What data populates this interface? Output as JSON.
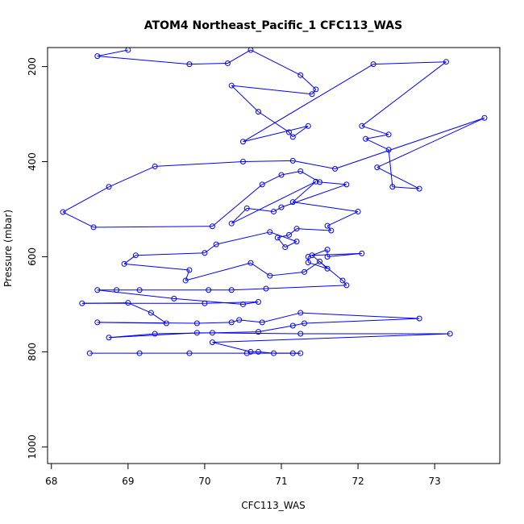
{
  "chart_data": {
    "type": "line",
    "title": "ATOM4 Northeast_Pacific_1 CFC113_WAS",
    "xlabel": "CFC113_WAS",
    "ylabel": "Pressure (mbar)",
    "xlim": [
      67.95,
      73.85
    ],
    "ylim": [
      1035,
      160
    ],
    "y_reversed": true,
    "xticks": [
      68,
      69,
      70,
      71,
      72,
      73
    ],
    "yticks": [
      200,
      400,
      600,
      800,
      1000
    ],
    "series_color": "#0000ff",
    "marker": "open-circle",
    "points": [
      [
        69.0,
        165
      ],
      [
        68.6,
        178
      ],
      [
        69.8,
        195
      ],
      [
        70.3,
        193
      ],
      [
        70.6,
        165
      ],
      [
        71.25,
        218
      ],
      [
        71.45,
        248
      ],
      [
        71.4,
        258
      ],
      [
        70.35,
        240
      ],
      [
        70.7,
        295
      ],
      [
        71.1,
        338
      ],
      [
        71.15,
        348
      ],
      [
        71.35,
        325
      ],
      [
        70.5,
        358
      ],
      [
        72.2,
        195
      ],
      [
        73.15,
        190
      ],
      [
        72.05,
        325
      ],
      [
        72.4,
        343
      ],
      [
        72.1,
        352
      ],
      [
        72.4,
        375
      ],
      [
        72.45,
        453
      ],
      [
        72.8,
        457
      ],
      [
        72.25,
        412
      ],
      [
        73.65,
        308
      ],
      [
        71.7,
        415
      ],
      [
        71.15,
        398
      ],
      [
        70.5,
        400
      ],
      [
        69.35,
        410
      ],
      [
        68.75,
        453
      ],
      [
        68.15,
        506
      ],
      [
        68.55,
        538
      ],
      [
        70.1,
        536
      ],
      [
        70.75,
        448
      ],
      [
        71.0,
        428
      ],
      [
        71.25,
        420
      ],
      [
        71.5,
        443
      ],
      [
        71.85,
        448
      ],
      [
        71.0,
        496
      ],
      [
        70.9,
        505
      ],
      [
        70.55,
        498
      ],
      [
        70.35,
        530
      ],
      [
        71.45,
        442
      ],
      [
        71.15,
        485
      ],
      [
        72.0,
        505
      ],
      [
        71.6,
        535
      ],
      [
        71.65,
        545
      ],
      [
        71.2,
        541
      ],
      [
        71.1,
        554
      ],
      [
        70.95,
        560
      ],
      [
        71.05,
        580
      ],
      [
        71.2,
        568
      ],
      [
        70.85,
        548
      ],
      [
        70.15,
        574
      ],
      [
        70.0,
        592
      ],
      [
        69.1,
        597
      ],
      [
        68.95,
        615
      ],
      [
        69.8,
        628
      ],
      [
        69.75,
        650
      ],
      [
        70.6,
        613
      ],
      [
        70.85,
        640
      ],
      [
        71.3,
        632
      ],
      [
        71.5,
        610
      ],
      [
        71.6,
        625
      ],
      [
        71.35,
        612
      ],
      [
        71.35,
        600
      ],
      [
        71.6,
        585
      ],
      [
        71.6,
        600
      ],
      [
        72.05,
        593
      ],
      [
        71.4,
        597
      ],
      [
        71.8,
        650
      ],
      [
        71.85,
        660
      ],
      [
        70.8,
        667
      ],
      [
        70.35,
        670
      ],
      [
        70.05,
        670
      ],
      [
        69.15,
        670
      ],
      [
        68.85,
        670
      ],
      [
        68.6,
        670
      ],
      [
        69.6,
        688
      ],
      [
        70.5,
        700
      ],
      [
        70.7,
        695
      ],
      [
        70.0,
        698
      ],
      [
        68.4,
        698
      ],
      [
        69.0,
        697
      ],
      [
        69.3,
        718
      ],
      [
        69.5,
        740
      ],
      [
        68.6,
        738
      ],
      [
        69.9,
        740
      ],
      [
        70.35,
        738
      ],
      [
        70.45,
        733
      ],
      [
        70.75,
        738
      ],
      [
        71.25,
        718
      ],
      [
        72.8,
        730
      ],
      [
        71.3,
        740
      ],
      [
        71.15,
        745
      ],
      [
        70.7,
        758
      ],
      [
        70.1,
        760
      ],
      [
        69.35,
        762
      ],
      [
        68.75,
        770
      ],
      [
        69.9,
        760
      ],
      [
        71.25,
        762
      ],
      [
        73.2,
        762
      ],
      [
        70.1,
        780
      ],
      [
        70.6,
        800
      ],
      [
        70.7,
        800
      ],
      [
        70.9,
        803
      ],
      [
        71.15,
        803
      ],
      [
        71.25,
        803
      ],
      [
        70.55,
        803
      ],
      [
        69.8,
        803
      ],
      [
        69.15,
        803
      ],
      [
        68.5,
        803
      ]
    ]
  }
}
